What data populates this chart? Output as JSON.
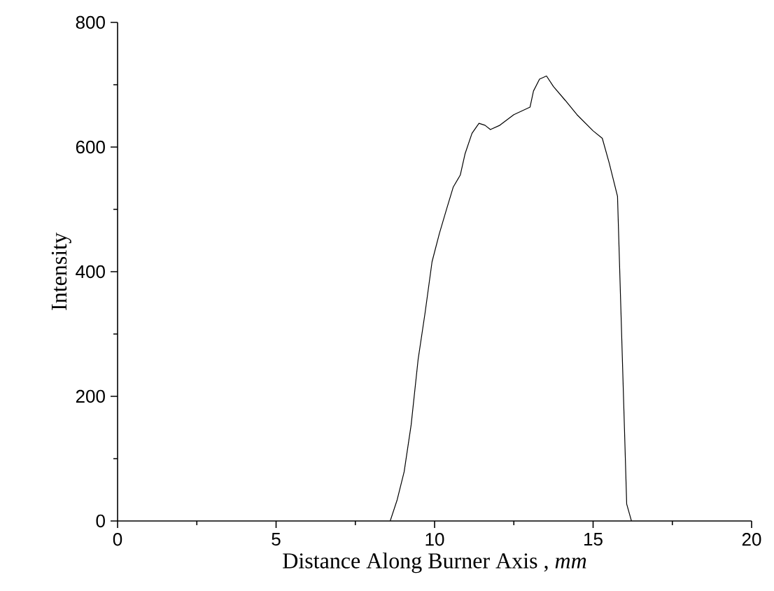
{
  "chart_data": {
    "type": "line",
    "xlabel": "Distance Along Burner Axis , *mm*",
    "ylabel": "Intensity",
    "xlim": [
      0,
      20
    ],
    "xticks": [
      0,
      5,
      10,
      15,
      20
    ],
    "ylim": [
      0,
      800
    ],
    "yticks": [
      0,
      200,
      400,
      600,
      800
    ],
    "series": [
      {
        "color": "#000000",
        "x": [
          8.6,
          8.82,
          9.04,
          9.26,
          9.48,
          9.7,
          9.92,
          10.15,
          10.37,
          10.59,
          10.81,
          10.96,
          11.18,
          11.4,
          11.59,
          11.76,
          12.06,
          12.5,
          13.01,
          13.12,
          13.31,
          13.53,
          13.75,
          14.12,
          14.49,
          15.0,
          15.29,
          15.51,
          15.77,
          15.88,
          15.99,
          16.06,
          16.21
        ],
        "values": [
          0,
          34,
          79,
          154,
          259,
          334,
          416,
          461,
          499,
          536,
          555,
          589,
          622,
          638,
          635,
          628,
          635,
          652,
          664,
          690,
          709,
          714,
          697,
          675,
          652,
          626,
          614,
          574,
          521,
          334,
          147,
          27,
          0
        ]
      }
    ]
  }
}
